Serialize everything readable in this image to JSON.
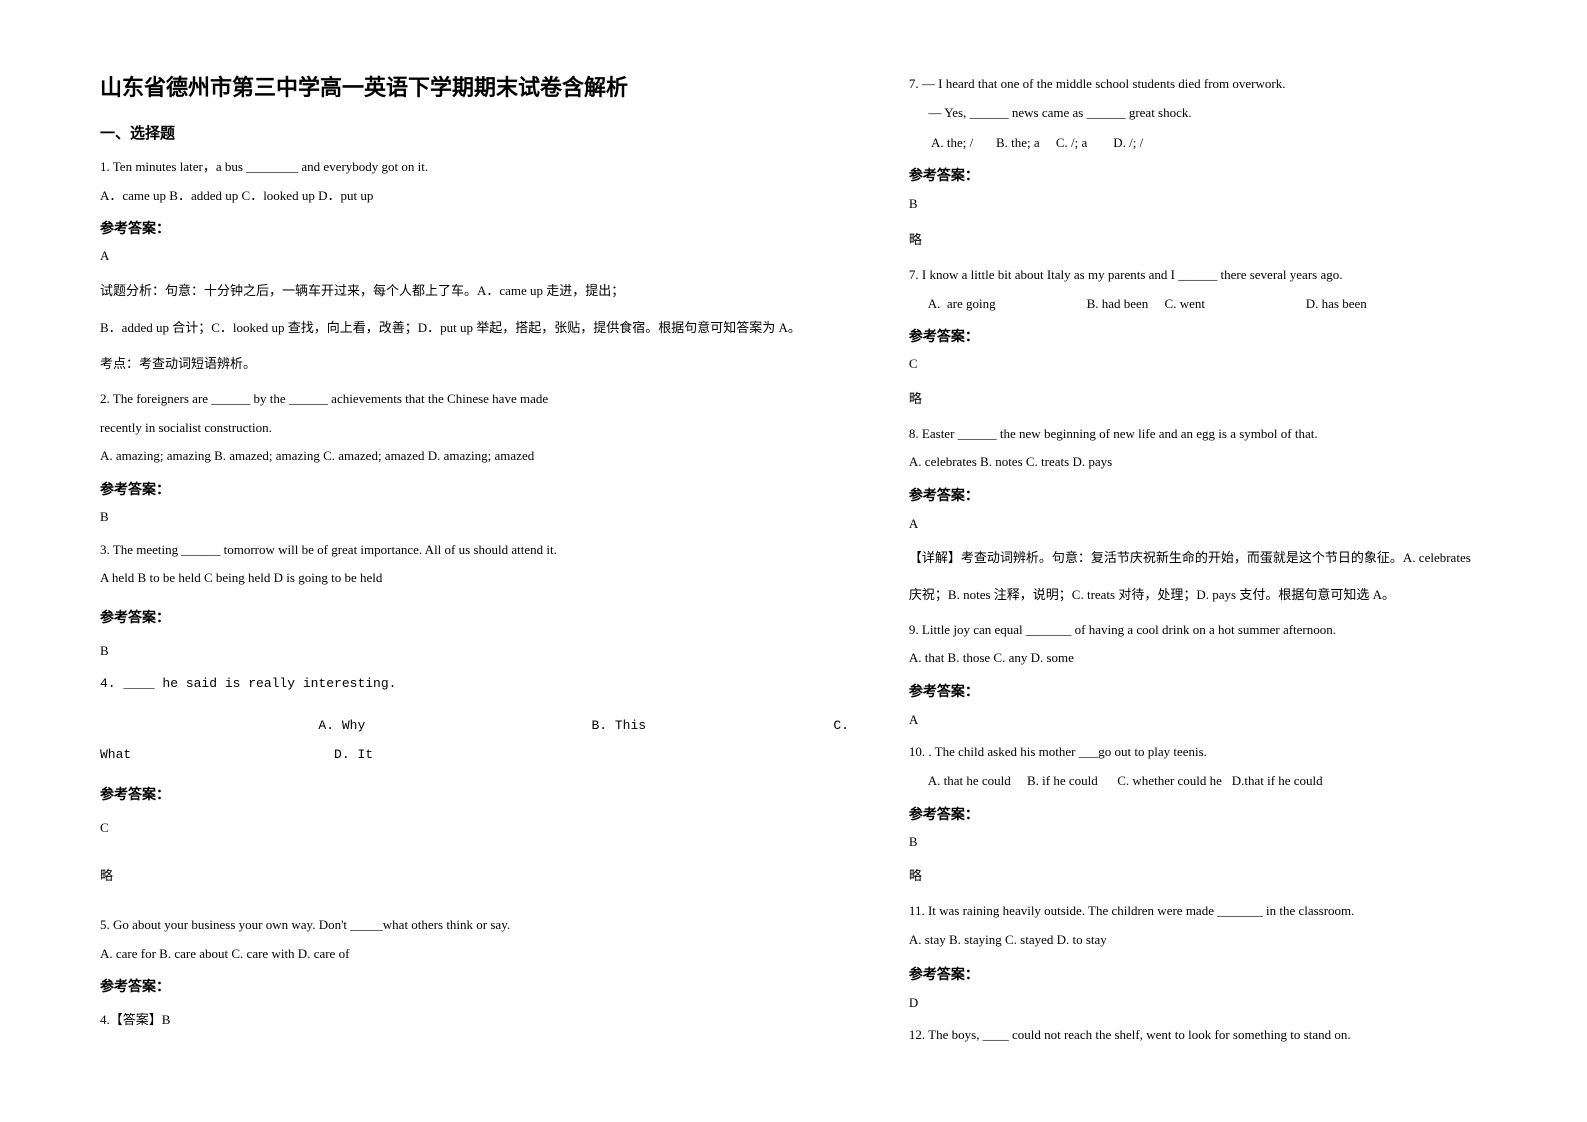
{
  "title": "山东省德州市第三中学高一英语下学期期末试卷含解析",
  "section1_header": "一、选择题",
  "q1": {
    "stem": "1. Ten minutes later，a bus ________ and everybody got on it.",
    "opts": "A．came up     B．added up     C．looked up     D．put up",
    "ans_label": "参考答案：",
    "ans": "A",
    "exp1": "试题分析：句意：十分钟之后，一辆车开过来，每个人都上了车。A．came up 走进，提出；",
    "exp2": "B．added up 合计；C．looked up 查找，向上看，改善；D．put up 举起，搭起，张贴，提供食宿。根据句意可知答案为 A。",
    "exp3": "考点：考查动词短语辨析。"
  },
  "q2": {
    "stem1": "2. The foreigners are ______ by the ______ achievements that the Chinese have made",
    "stem2": "recently in socialist construction.",
    "opts": "A. amazing; amazing     B. amazed; amazing     C. amazed; amazed     D. amazing; amazed",
    "ans_label": "参考答案：",
    "ans": "B"
  },
  "q3": {
    "stem": "3. The meeting ______ tomorrow will be of great importance. All of us should attend it.",
    "opts": "A  held    B  to be held   C being held    D is going to be held",
    "ans_label": "参考答案：",
    "ans": "B"
  },
  "q4": {
    "stem": "4. ____ he said is really interesting.",
    "opts_line1": "                            A. Why                             B. This                        C.",
    "opts_line2": "What                          D. It",
    "ans_label": "参考答案：",
    "ans": "C",
    "exp": "略"
  },
  "q5": {
    "stem": "5. Go about your business your own way. Don't _____what others think or say.",
    "opts": "   A. care for   B. care about   C. care with   D. care of",
    "ans_label": "参考答案：",
    "ans": "4.【答案】B"
  },
  "q7a": {
    "stem": "7. — I heard that one of the middle school students died from overwork.",
    "stem2": "      — Yes, ______ news came as ______ great shock.",
    "opts": "       A. the; /       B. the; a     C. /; a        D. /; /",
    "ans_label": "参考答案：",
    "ans": "B",
    "exp": "略"
  },
  "q7b": {
    "stem": "7. I know a little bit about Italy as my parents and I ______ there several years ago.",
    "opts": "      A.  are going                            B. had been     C. went                               D. has been",
    "ans_label": "参考答案：",
    "ans": "C",
    "exp": "略"
  },
  "q8": {
    "stem": "8. Easter ______ the new beginning of new life and an egg is a symbol of that.",
    "opts": "A. celebrates    B. notes          C. treats          D. pays",
    "ans_label": "参考答案：",
    "ans": "A",
    "exp1": "【详解】考查动词辨析。句意：复活节庆祝新生命的开始，而蛋就是这个节日的象征。A. celebrates",
    "exp2": "庆祝；B. notes 注释，说明；C. treats 对待，处理；D. pays 支付。根据句意可知选 A。"
  },
  "q9": {
    "stem": "9. Little joy can equal _______ of having a cool drink on a hot summer afternoon.",
    "opts": "A. that   B. those   C. any   D. some",
    "ans_label": "参考答案：",
    "ans": "A"
  },
  "q10": {
    "stem": "10. .  The child asked his mother ___go out to play teenis.",
    "opts": "      A. that he could     B. if he could      C. whether could he   D.that if he could",
    "ans_label": "参考答案：",
    "ans": "B",
    "exp": "略"
  },
  "q11": {
    "stem": "11. It was raining heavily outside. The children were made _______ in the classroom.",
    "opts": "  A. stay   B. staying   C. stayed   D. to stay",
    "ans_label": "参考答案：",
    "ans": "D"
  },
  "q12": {
    "stem": "12. The boys, ____ could not reach the shelf, went to look for something to stand on."
  },
  "colors": {
    "text": "#000000",
    "background": "#ffffff"
  },
  "typography": {
    "title_fontsize": 22,
    "body_fontsize": 13,
    "header_fontsize": 15,
    "answer_label_fontsize": 14,
    "line_height": 1.9
  }
}
